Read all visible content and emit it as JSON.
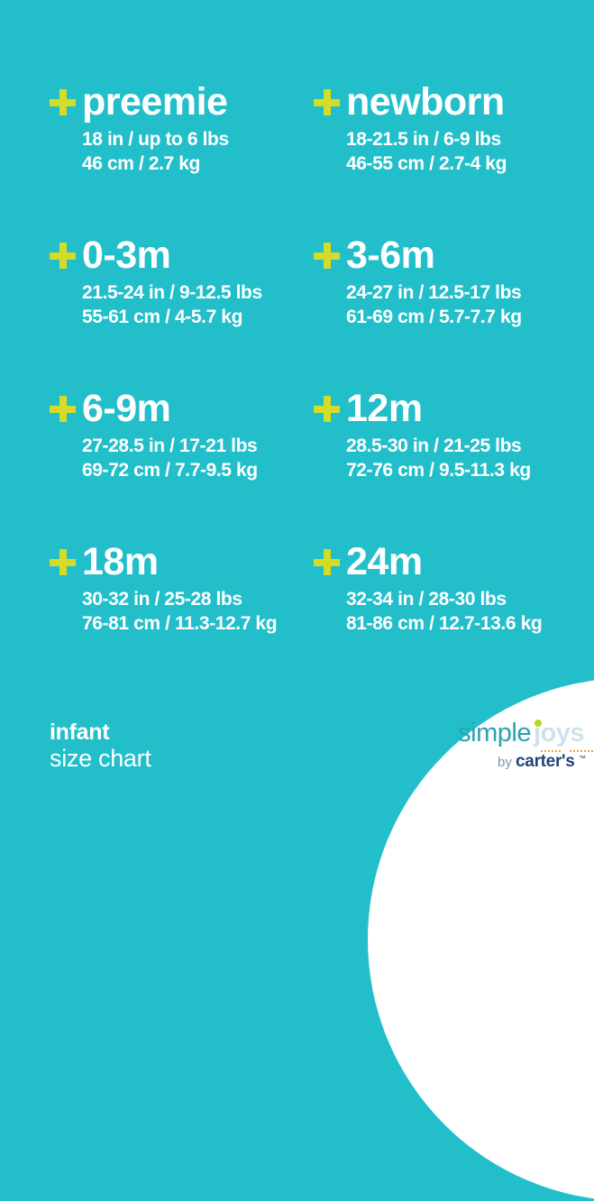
{
  "colors": {
    "background": "#22bfcb",
    "plus_accent": "#d4dc28",
    "text": "#ffffff",
    "logo_simple": "#2aa2b2",
    "logo_joys": "#cfe2e9",
    "logo_j_dot": "#bdd322",
    "logo_dots": "#e8a43e",
    "logo_by": "#7b99b1",
    "logo_carters": "#1e4477",
    "circle": "#ffffff"
  },
  "sizes": [
    {
      "label": "preemie",
      "imperial": "18 in / up to 6 lbs",
      "metric": "46 cm / 2.7 kg"
    },
    {
      "label": "newborn",
      "imperial": "18-21.5 in / 6-9 lbs",
      "metric": "46-55 cm / 2.7-4 kg"
    },
    {
      "label": "0-3m",
      "imperial": "21.5-24 in / 9-12.5 lbs",
      "metric": "55-61 cm / 4-5.7 kg"
    },
    {
      "label": "3-6m",
      "imperial": "24-27 in / 12.5-17 lbs",
      "metric": "61-69 cm / 5.7-7.7 kg"
    },
    {
      "label": "6-9m",
      "imperial": "27-28.5 in / 17-21 lbs",
      "metric": "69-72 cm / 7.7-9.5 kg"
    },
    {
      "label": "12m",
      "imperial": "28.5-30 in / 21-25 lbs",
      "metric": "72-76 cm / 9.5-11.3 kg"
    },
    {
      "label": "18m",
      "imperial": "30-32 in / 25-28 lbs",
      "metric": "76-81 cm / 11.3-12.7 kg"
    },
    {
      "label": "24m",
      "imperial": "32-34 in / 28-30 lbs",
      "metric": "81-86 cm / 12.7-13.6 kg"
    }
  ],
  "footer": {
    "category": "infant",
    "subtitle": "size chart"
  },
  "logo": {
    "simple": "simple",
    "joys": "joys",
    "by": "by ",
    "brand": "carter's",
    "trademark": "™"
  }
}
